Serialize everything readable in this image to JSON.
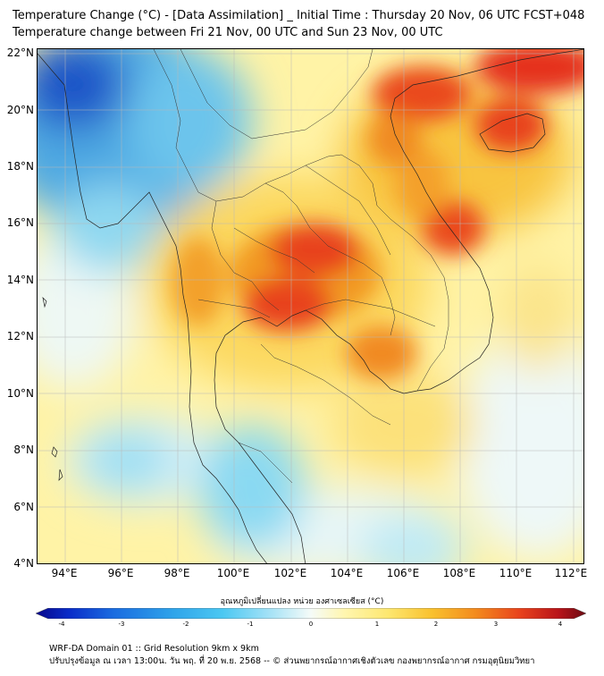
{
  "header": {
    "title_line1": "Temperature Change (°C) - [Data Assimilation] _ Initial Time : Thursday 20 Nov, 06 UTC FCST+048",
    "title_line2": "Temperature change between Fri 21 Nov, 00 UTC and Sun 23 Nov, 00 UTC"
  },
  "map": {
    "lat_labels": [
      "22°N",
      "20°N",
      "18°N",
      "16°N",
      "14°N",
      "12°N",
      "10°N",
      "8°N",
      "6°N",
      "4°N"
    ],
    "lon_labels": [
      "94°E",
      "96°E",
      "98°E",
      "100°E",
      "102°E",
      "104°E",
      "106°E",
      "108°E",
      "110°E",
      "112°E"
    ],
    "lat_range": [
      4,
      22.2
    ],
    "lon_range": [
      93,
      112.4
    ]
  },
  "colorbar": {
    "label": "อุณหภูมิเปลี่ยนแปลง หน่วย องศาเซลเซียส (°C)",
    "ticks": [
      "-4",
      "-3",
      "-2",
      "-1",
      "0",
      "1",
      "2",
      "3",
      "4"
    ],
    "range": [
      -4,
      4
    ]
  },
  "footer": {
    "line1": "WRF-DA Domain 01 :: Grid Resolution 9km x 9km",
    "line2": "ปรับปรุงข้อมูล ณ เวลา 13:00น. วัน พฤ. ที่ 20 พ.ย. 2568 -- © ส่วนพยากรณ์อากาศเชิงตัวเลข กองพยากรณ์อากาศ กรมอุตุนิยมวิทยา"
  },
  "colors": {
    "land_base": "#fde98a",
    "warm": "#f59a1e",
    "hot": "#e8321a",
    "cool": "#7fd4ef",
    "cold": "#3a96d8",
    "neutral": "#f4f8f0"
  }
}
